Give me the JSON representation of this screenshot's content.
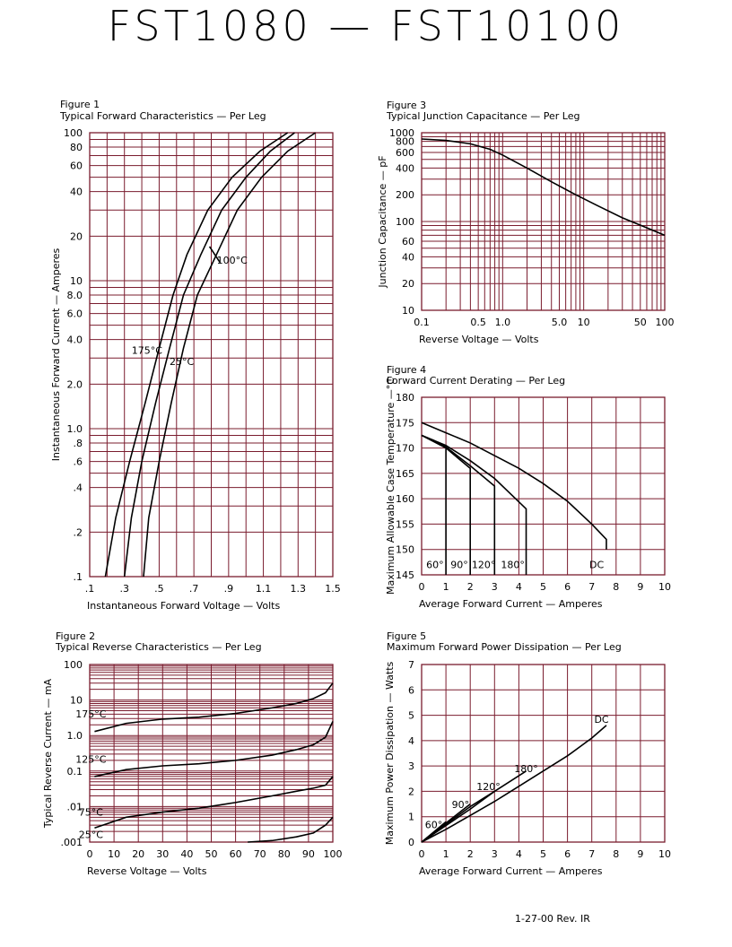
{
  "title": "FST1080  —  FST10100",
  "footer": "1-27-00   Rev. IR",
  "colors": {
    "grid": "#7a1c2e",
    "curve": "#000000"
  },
  "chart_data": [
    {
      "id": "fig1",
      "figure_label": "Figure 1",
      "title": "Typical Forward Characteristics — Per Leg",
      "type": "line",
      "xlabel": "Instantaneous Forward Voltage — Volts",
      "ylabel": "Instantaneous Forward Current — Amperes",
      "xscale": "linear",
      "yscale": "log",
      "xlim": [
        0.1,
        1.5
      ],
      "ylim": [
        0.1,
        100
      ],
      "xticks": [
        0.1,
        0.3,
        0.5,
        0.7,
        0.9,
        1.1,
        1.3,
        1.5
      ],
      "xticklabels": [
        ".1",
        ".3",
        ".5",
        ".7",
        ".9",
        "1.1",
        "1.3",
        "1.5"
      ],
      "yticks": [
        0.1,
        0.2,
        0.4,
        0.6,
        0.8,
        1,
        2,
        4,
        6,
        8,
        10,
        20,
        40,
        60,
        80,
        100
      ],
      "yticklabels": [
        ".1",
        ".2",
        ".4",
        ".6",
        ".8",
        "1.0",
        "2.0",
        "4.0",
        "6.0",
        "8.0",
        "10",
        "20",
        "40",
        "60",
        "80",
        "100"
      ],
      "xgrid": [
        0.1,
        0.2,
        0.3,
        0.4,
        0.5,
        0.6,
        0.7,
        0.8,
        0.9,
        1.0,
        1.1,
        1.2,
        1.3,
        1.4,
        1.5
      ],
      "ygrid": [
        0.1,
        0.2,
        0.3,
        0.4,
        0.5,
        0.6,
        0.7,
        0.8,
        0.9,
        1,
        2,
        3,
        4,
        5,
        6,
        7,
        8,
        9,
        10,
        20,
        30,
        40,
        50,
        60,
        70,
        80,
        90,
        100
      ],
      "series": [
        {
          "name": "175°C",
          "x": [
            0.19,
            0.25,
            0.33,
            0.42,
            0.5,
            0.58,
            0.66,
            0.78,
            0.92,
            1.08,
            1.24
          ],
          "y": [
            0.1,
            0.25,
            0.6,
            1.5,
            3.5,
            8,
            15,
            30,
            50,
            75,
            100
          ]
        },
        {
          "name": "100°C",
          "x": [
            0.3,
            0.34,
            0.4,
            0.48,
            0.56,
            0.64,
            0.74,
            0.86,
            1.0,
            1.14,
            1.28
          ],
          "y": [
            0.1,
            0.25,
            0.6,
            1.5,
            3.5,
            8,
            15,
            30,
            50,
            75,
            100
          ]
        },
        {
          "name": "25°C",
          "x": [
            0.41,
            0.44,
            0.5,
            0.57,
            0.64,
            0.72,
            0.83,
            0.95,
            1.09,
            1.24,
            1.4
          ],
          "y": [
            0.1,
            0.25,
            0.6,
            1.5,
            3.5,
            8,
            15,
            30,
            50,
            75,
            100
          ]
        }
      ],
      "annotations": [
        {
          "text": "175°C",
          "x": 0.43,
          "y": 3.2
        },
        {
          "text": "100°C",
          "x": 0.92,
          "y": 13
        },
        {
          "text": "25°C",
          "x": 0.63,
          "y": 2.7
        }
      ]
    },
    {
      "id": "fig2",
      "figure_label": "Figure 2",
      "title": "Typical Reverse Characteristics — Per Leg",
      "type": "line",
      "xlabel": "Reverse Voltage — Volts",
      "ylabel": "Typical Reverse Current — mA",
      "xscale": "linear",
      "yscale": "log",
      "xlim": [
        0,
        100
      ],
      "ylim": [
        0.001,
        100
      ],
      "xticks": [
        0,
        10,
        20,
        30,
        40,
        50,
        60,
        70,
        80,
        90,
        100
      ],
      "xticklabels": [
        "0",
        "10",
        "20",
        "30",
        "40",
        "50",
        "60",
        "70",
        "80",
        "90",
        "100"
      ],
      "yticks": [
        0.001,
        0.01,
        0.1,
        1,
        10,
        100
      ],
      "yticklabels": [
        ".001",
        ".01",
        "0.1",
        "1.0",
        "10",
        "100"
      ],
      "xgrid": [
        0,
        10,
        20,
        30,
        40,
        50,
        60,
        70,
        80,
        90,
        100
      ],
      "ygrid": [
        0.001,
        0.002,
        0.003,
        0.004,
        0.005,
        0.006,
        0.007,
        0.008,
        0.009,
        0.01,
        0.02,
        0.03,
        0.04,
        0.05,
        0.06,
        0.07,
        0.08,
        0.09,
        0.1,
        0.2,
        0.3,
        0.4,
        0.5,
        0.6,
        0.7,
        0.8,
        0.9,
        1,
        2,
        3,
        4,
        5,
        6,
        7,
        8,
        9,
        10,
        20,
        30,
        40,
        50,
        60,
        70,
        80,
        90,
        100
      ],
      "series": [
        {
          "name": "175°C",
          "x": [
            2,
            15,
            30,
            45,
            60,
            75,
            85,
            92,
            97,
            100
          ],
          "y": [
            1.3,
            2.2,
            2.9,
            3.3,
            4.2,
            6,
            8,
            11,
            16,
            30
          ]
        },
        {
          "name": "125°C",
          "x": [
            2,
            15,
            30,
            45,
            60,
            75,
            85,
            92,
            97,
            100
          ],
          "y": [
            0.07,
            0.11,
            0.14,
            0.16,
            0.2,
            0.28,
            0.4,
            0.55,
            0.9,
            2.5
          ]
        },
        {
          "name": "75°C",
          "x": [
            2,
            15,
            30,
            45,
            60,
            75,
            85,
            92,
            97,
            100
          ],
          "y": [
            0.0025,
            0.005,
            0.007,
            0.009,
            0.013,
            0.02,
            0.027,
            0.033,
            0.04,
            0.07
          ]
        },
        {
          "name": "25°C",
          "x": [
            65,
            75,
            85,
            92,
            97,
            100
          ],
          "y": [
            0.001,
            0.0011,
            0.0014,
            0.0018,
            0.003,
            0.005
          ]
        }
      ],
      "annotations": [
        {
          "text": "175°C",
          "x": 0.5,
          "y": 3.2
        },
        {
          "text": "125°C",
          "x": 0.5,
          "y": 0.17
        },
        {
          "text": "75°C",
          "x": 0.5,
          "y": 0.0055
        },
        {
          "text": "25°C",
          "x": 0.5,
          "y": 0.0013
        }
      ]
    },
    {
      "id": "fig3",
      "figure_label": "Figure 3",
      "title": "Typical Junction Capacitance — Per Leg",
      "type": "line",
      "xlabel": "Reverse Voltage — Volts",
      "ylabel": "Junction Capacitance — pF",
      "xscale": "log",
      "yscale": "log",
      "xlim": [
        0.1,
        100
      ],
      "ylim": [
        10,
        1000
      ],
      "xticks": [
        0.1,
        0.5,
        1,
        5,
        10,
        50,
        100
      ],
      "xticklabels": [
        "0.1",
        "0.5",
        "1.0",
        "5.0",
        "10",
        "50",
        "100"
      ],
      "yticks": [
        10,
        20,
        40,
        60,
        100,
        200,
        400,
        600,
        800,
        1000
      ],
      "yticklabels": [
        "10",
        "20",
        "40",
        "60",
        "100",
        "200",
        "400",
        "600",
        "800",
        "1000"
      ],
      "xgrid": [
        0.1,
        0.2,
        0.3,
        0.4,
        0.5,
        0.6,
        0.7,
        0.8,
        0.9,
        1,
        2,
        3,
        4,
        5,
        6,
        7,
        8,
        9,
        10,
        20,
        30,
        40,
        50,
        60,
        70,
        80,
        90,
        100
      ],
      "ygrid": [
        10,
        20,
        30,
        40,
        50,
        60,
        70,
        80,
        90,
        100,
        200,
        300,
        400,
        500,
        600,
        700,
        800,
        900,
        1000
      ],
      "series": [
        {
          "name": "",
          "x": [
            0.1,
            0.2,
            0.4,
            0.7,
            1,
            2,
            4,
            8,
            15,
            30,
            60,
            100
          ],
          "y": [
            850,
            820,
            750,
            650,
            560,
            400,
            280,
            200,
            150,
            110,
            85,
            70
          ]
        }
      ],
      "annotations": []
    },
    {
      "id": "fig4",
      "figure_label": "Figure 4",
      "title": "Forward Current Derating — Per Leg",
      "type": "line",
      "xlabel": "Average Forward Current — Amperes",
      "ylabel": "Maximum Allowable Case Temperature —°C",
      "xscale": "linear",
      "yscale": "linear",
      "xlim": [
        0,
        10
      ],
      "ylim": [
        145,
        180
      ],
      "xticks": [
        0,
        1,
        2,
        3,
        4,
        5,
        6,
        7,
        8,
        9,
        10
      ],
      "xticklabels": [
        "0",
        "1",
        "2",
        "3",
        "4",
        "5",
        "6",
        "7",
        "8",
        "9",
        "10"
      ],
      "yticks": [
        145,
        150,
        155,
        160,
        165,
        170,
        175,
        180
      ],
      "yticklabels": [
        "145",
        "150",
        "155",
        "160",
        "165",
        "170",
        "175",
        "180"
      ],
      "xgrid": [
        0,
        1,
        2,
        3,
        4,
        5,
        6,
        7,
        8,
        9,
        10
      ],
      "ygrid": [
        145,
        150,
        155,
        160,
        165,
        170,
        175,
        180
      ],
      "series": [
        {
          "name": "60°",
          "x": [
            0,
            0.5,
            1,
            1,
            1
          ],
          "y": [
            172.5,
            171.5,
            170,
            145,
            145
          ]
        },
        {
          "name": "90°",
          "x": [
            0,
            1,
            2,
            2
          ],
          "y": [
            172.5,
            170,
            166,
            145
          ]
        },
        {
          "name": "120°",
          "x": [
            0,
            1,
            2,
            3,
            3
          ],
          "y": [
            172.5,
            170.2,
            166.5,
            162.5,
            145
          ]
        },
        {
          "name": "180°",
          "x": [
            0,
            1,
            2,
            3,
            4.3,
            4.3
          ],
          "y": [
            172.5,
            170.5,
            167.5,
            164,
            158,
            145
          ]
        },
        {
          "name": "DC",
          "x": [
            0,
            1,
            2,
            3,
            4,
            5,
            6,
            7,
            7.6,
            7.6
          ],
          "y": [
            175,
            173,
            171,
            168.5,
            166,
            163,
            159.5,
            155,
            152,
            150
          ]
        }
      ],
      "annotations": [
        {
          "text": "60°",
          "x": 0.55,
          "y": 146.3
        },
        {
          "text": "90°",
          "x": 1.55,
          "y": 146.3
        },
        {
          "text": "120°",
          "x": 2.55,
          "y": 146.3
        },
        {
          "text": "180°",
          "x": 3.75,
          "y": 146.3
        },
        {
          "text": "DC",
          "x": 7.2,
          "y": 146.3
        }
      ]
    },
    {
      "id": "fig5",
      "figure_label": "Figure 5",
      "title": "Maximum Forward Power Dissipation — Per Leg",
      "type": "line",
      "xlabel": "Average Forward Current — Amperes",
      "ylabel": "Maximum Power Dissipation — Watts",
      "xscale": "linear",
      "yscale": "linear",
      "xlim": [
        0,
        10
      ],
      "ylim": [
        0,
        7
      ],
      "xticks": [
        0,
        1,
        2,
        3,
        4,
        5,
        6,
        7,
        8,
        9,
        10
      ],
      "xticklabels": [
        "0",
        "1",
        "2",
        "3",
        "4",
        "5",
        "6",
        "7",
        "8",
        "9",
        "10"
      ],
      "yticks": [
        0,
        1,
        2,
        3,
        4,
        5,
        6,
        7
      ],
      "yticklabels": [
        "0",
        "1",
        "2",
        "3",
        "4",
        "5",
        "6",
        "7"
      ],
      "xgrid": [
        0,
        1,
        2,
        3,
        4,
        5,
        6,
        7,
        8,
        9,
        10
      ],
      "ygrid": [
        0,
        1,
        2,
        3,
        4,
        5,
        6,
        7
      ],
      "series": [
        {
          "name": "60°",
          "x": [
            0,
            0.5,
            1
          ],
          "y": [
            0,
            0.4,
            0.8
          ]
        },
        {
          "name": "90°",
          "x": [
            0,
            1,
            2
          ],
          "y": [
            0,
            0.75,
            1.5
          ]
        },
        {
          "name": "120°",
          "x": [
            0,
            1,
            2,
            3
          ],
          "y": [
            0,
            0.7,
            1.4,
            2.0
          ]
        },
        {
          "name": "180°",
          "x": [
            0,
            1,
            2,
            3,
            4.3
          ],
          "y": [
            0,
            0.65,
            1.3,
            2.0,
            2.8
          ]
        },
        {
          "name": "DC",
          "x": [
            0,
            1,
            2,
            3,
            4,
            5,
            6,
            7,
            7.6
          ],
          "y": [
            0,
            0.5,
            1.05,
            1.6,
            2.2,
            2.8,
            3.4,
            4.1,
            4.6
          ]
        }
      ],
      "annotations": [
        {
          "text": "60°",
          "x": 0.5,
          "y": 0.55
        },
        {
          "text": "90°",
          "x": 1.6,
          "y": 1.35
        },
        {
          "text": "120°",
          "x": 2.75,
          "y": 2.05
        },
        {
          "text": "180°",
          "x": 4.3,
          "y": 2.75
        },
        {
          "text": "DC",
          "x": 7.4,
          "y": 4.7
        }
      ]
    }
  ]
}
